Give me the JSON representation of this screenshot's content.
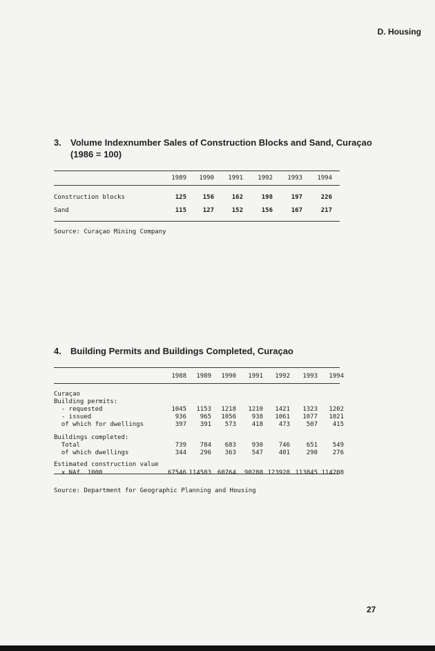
{
  "header": {
    "section": "D. Housing"
  },
  "page_number": "27",
  "table3": {
    "number": "3.",
    "title_line1": "Volume Indexnumber Sales of Construction Blocks and Sand, Curaçao",
    "title_line2": "(1986 = 100)",
    "years": [
      "1989",
      "1990",
      "1991",
      "1992",
      "1993",
      "1994"
    ],
    "rows": [
      {
        "label": "Construction blocks",
        "values": [
          "125",
          "156",
          "162",
          "198",
          "197",
          "226"
        ]
      },
      {
        "label": "Sand",
        "values": [
          "115",
          "127",
          "152",
          "156",
          "167",
          "217"
        ]
      }
    ],
    "source": "Source: Curaçao Mining Company"
  },
  "table4": {
    "number": "4.",
    "title": "Building Permits and Buildings Completed, Curaçao",
    "years": [
      "1988",
      "1989",
      "1990",
      "1991",
      "1992",
      "1993",
      "1994"
    ],
    "rows": [
      {
        "label": "Curaçao",
        "values": []
      },
      {
        "label": "Building permits:",
        "values": []
      },
      {
        "label": "  - requested",
        "values": [
          "1045",
          "1153",
          "1218",
          "1210",
          "1421",
          "1323",
          "1202"
        ]
      },
      {
        "label": "  - issued",
        "values": [
          "936",
          "965",
          "1056",
          "938",
          "1061",
          "1077",
          "1021"
        ]
      },
      {
        "label": "  of which for dwellings",
        "values": [
          "397",
          "391",
          "573",
          "418",
          "473",
          "507",
          "415"
        ]
      },
      {
        "label": "",
        "values": []
      },
      {
        "label": "Buildings completed:",
        "values": []
      },
      {
        "label": "  Total",
        "values": [
          "739",
          "784",
          "683",
          "930",
          "746",
          "651",
          "549"
        ]
      },
      {
        "label": "  of which dwellings",
        "values": [
          "344",
          "296",
          "363",
          "547",
          "401",
          "290",
          "276"
        ]
      },
      {
        "label": "",
        "values": []
      },
      {
        "label": "Estimated construction value",
        "values": []
      },
      {
        "label": "  x NAf. 1000",
        "values": [
          "67546",
          "114583",
          "60764",
          "90280",
          "123928",
          "113845",
          "114208"
        ]
      }
    ],
    "source": "Source: Department for Geographic Planning and Housing"
  }
}
